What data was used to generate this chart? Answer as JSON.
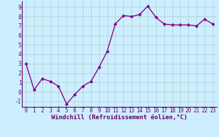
{
  "x": [
    0,
    1,
    2,
    3,
    4,
    5,
    6,
    7,
    8,
    9,
    10,
    11,
    12,
    13,
    14,
    15,
    16,
    17,
    18,
    19,
    20,
    21,
    22,
    23
  ],
  "y": [
    3.0,
    0.2,
    1.4,
    1.1,
    0.6,
    -1.3,
    -0.3,
    0.6,
    1.1,
    2.6,
    4.3,
    7.2,
    8.1,
    8.0,
    8.2,
    9.1,
    7.9,
    7.2,
    7.1,
    7.1,
    7.1,
    7.0,
    7.7,
    7.2
  ],
  "line_color": "#880088",
  "marker": "D",
  "markersize": 2.2,
  "linewidth": 1.0,
  "xlabel": "Windchill (Refroidissement éolien,°C)",
  "xlim": [
    -0.5,
    23.5
  ],
  "ylim": [
    -1.6,
    9.6
  ],
  "yticks": [
    -1,
    0,
    1,
    2,
    3,
    4,
    5,
    6,
    7,
    8,
    9
  ],
  "xticks": [
    0,
    1,
    2,
    3,
    4,
    5,
    6,
    7,
    8,
    9,
    10,
    11,
    12,
    13,
    14,
    15,
    16,
    17,
    18,
    19,
    20,
    21,
    22,
    23
  ],
  "bg_color": "#cceeff",
  "grid_color": "#aacccc",
  "tick_color": "#660066",
  "tick_label_fontsize": 5.5,
  "xlabel_fontsize": 6.5
}
